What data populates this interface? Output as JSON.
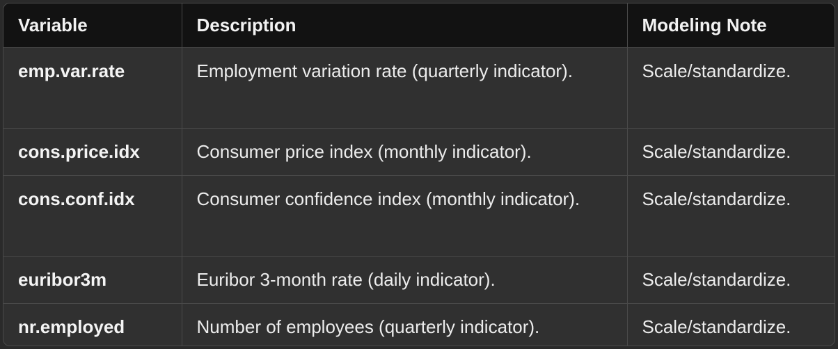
{
  "table": {
    "headers": [
      "Variable",
      "Description",
      "Modeling Note"
    ],
    "rows": [
      {
        "variable": "emp.var.rate",
        "description": "Employment variation rate (quarterly indicator).",
        "note": "Scale/standardize."
      },
      {
        "variable": "cons.price.idx",
        "description": "Consumer price index (monthly indicator).",
        "note": "Scale/standardize."
      },
      {
        "variable": "cons.conf.idx",
        "description": "Consumer confidence index (monthly indicator).",
        "note": "Scale/standardize."
      },
      {
        "variable": "euribor3m",
        "description": "Euribor 3-month rate (daily indicator).",
        "note": "Scale/standardize."
      },
      {
        "variable": "nr.employed",
        "description": "Number of employees (quarterly indicator).",
        "note": "Scale/standardize."
      }
    ]
  },
  "colors": {
    "header_bg": "#121212",
    "body_bg": "#303030",
    "border": "#4a4a4a",
    "text": "#ececec"
  }
}
